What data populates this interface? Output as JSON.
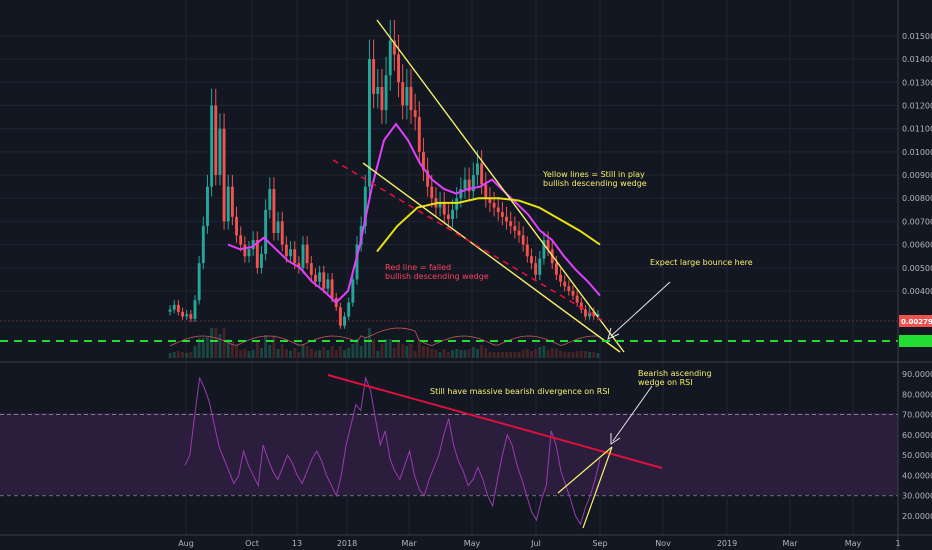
{
  "colors": {
    "background": "#131722",
    "grid": "#1f2430",
    "candle_up": "#26a69a",
    "candle_down": "#ef5350",
    "ma_short": "#e040fb",
    "ma_long": "#e8e010",
    "volume_ma": "#c05858",
    "trend_yellow": "#f5f06a",
    "trend_red": "#e0103c",
    "support_green": "#22dd33",
    "rsi_line": "#9a3ab0",
    "rsi_band": "#2b1e3d",
    "current_price_badge": "#ef5350",
    "support_badge": "#22dd33"
  },
  "price_badge": "0.002794",
  "support_badge": "0.002000",
  "annotations": {
    "yellow_lines_1": "Yellow lines = Still in play",
    "yellow_lines_2": "bullish descending wedge",
    "red_line_1": "Red line = failed",
    "red_line_2": "bullish descending wedge",
    "bounce": "Expect large bounce here",
    "divergence": "Still have massive bearish divergence on RSI",
    "rsi_wedge_1": "Bearish ascending",
    "rsi_wedge_2": "wedge on RSI"
  },
  "chart_data": [
    {
      "type": "candlestick",
      "x_tick_labels": [
        "Aug",
        "Oct",
        "13",
        "2018",
        "Mar",
        "May",
        "Jul",
        "Sep",
        "Nov",
        "2019",
        "Mar",
        "May",
        "1"
      ],
      "y_tick_labels": [
        "0.015000",
        "0.014000",
        "0.013000",
        "0.012000",
        "0.011000",
        "0.010000",
        "0.009000",
        "0.008000",
        "0.007000",
        "0.006000",
        "0.005000",
        "0.004000"
      ],
      "ylim": [
        0.0018,
        0.0156
      ],
      "close_series": [
        0.0032,
        0.0034,
        0.0031,
        0.0029,
        0.003,
        0.0028,
        0.0036,
        0.0052,
        0.0068,
        0.0085,
        0.012,
        0.009,
        0.011,
        0.007,
        0.0085,
        0.0072,
        0.0064,
        0.006,
        0.0055,
        0.0058,
        0.0062,
        0.005,
        0.0056,
        0.0075,
        0.0084,
        0.0065,
        0.007,
        0.006,
        0.0055,
        0.0058,
        0.0052,
        0.005,
        0.006,
        0.0052,
        0.0047,
        0.0044,
        0.0048,
        0.0041,
        0.0045,
        0.0037,
        0.0033,
        0.0025,
        0.0029,
        0.0035,
        0.0045,
        0.006,
        0.0068,
        0.0085,
        0.014,
        0.0125,
        0.0128,
        0.0118,
        0.0133,
        0.0148,
        0.0142,
        0.013,
        0.012,
        0.0128,
        0.0118,
        0.0115,
        0.01,
        0.0092,
        0.0085,
        0.008,
        0.0076,
        0.0078,
        0.0073,
        0.0071,
        0.0075,
        0.008,
        0.0084,
        0.0088,
        0.0083,
        0.009,
        0.0095,
        0.0086,
        0.008,
        0.0078,
        0.0076,
        0.0074,
        0.0072,
        0.007,
        0.0068,
        0.0066,
        0.0064,
        0.006,
        0.0055,
        0.0052,
        0.0047,
        0.0054,
        0.0062,
        0.0058,
        0.0052,
        0.0047,
        0.0044,
        0.0042,
        0.004,
        0.0038,
        0.0035,
        0.0032,
        0.0029,
        0.0031,
        0.0029,
        0.003
      ],
      "moving_averages": [
        {
          "name": "",
          "values": [
            0.006,
            0.0058,
            0.0059,
            0.0063,
            0.0058,
            0.0053,
            0.005,
            0.0044,
            0.004,
            0.0035,
            0.004,
            0.006,
            0.0085,
            0.0105,
            0.0112,
            0.0105,
            0.0095,
            0.0088,
            0.0084,
            0.0082,
            0.0084,
            0.0085,
            0.0088,
            0.0083,
            0.0078,
            0.0073,
            0.0066,
            0.0062,
            0.0055,
            0.0049,
            0.0044,
            0.0038
          ]
        },
        {
          "name": "",
          "values": [
            0.0057,
            0.0068,
            0.0076,
            0.0078,
            0.0078,
            0.008,
            0.008,
            0.0079,
            0.0076,
            0.0071,
            0.0066,
            0.006
          ]
        }
      ],
      "current_price": 0.002794,
      "support_level": 0.002
    },
    {
      "type": "line",
      "title": "RSI",
      "y_tick_labels": [
        "90.0000",
        "80.0000",
        "70.0000",
        "60.0000",
        "50.0000",
        "40.0000",
        "30.0000",
        "20.0000"
      ],
      "ylim": [
        14,
        92
      ],
      "overbought": 70,
      "oversold": 30,
      "values": [
        45,
        50,
        70,
        88,
        83,
        76,
        65,
        54,
        48,
        42,
        36,
        40,
        52,
        45,
        40,
        35,
        55,
        48,
        42,
        38,
        44,
        50,
        46,
        40,
        36,
        42,
        48,
        52,
        47,
        40,
        35,
        30,
        40,
        55,
        65,
        75,
        72,
        88,
        82,
        68,
        55,
        62,
        48,
        42,
        38,
        45,
        52,
        40,
        33,
        30,
        38,
        44,
        50,
        60,
        68,
        55,
        47,
        42,
        35,
        38,
        44,
        38,
        30,
        25,
        38,
        50,
        60,
        55,
        45,
        38,
        30,
        22,
        18,
        28,
        35,
        62,
        55,
        42,
        35,
        28,
        20,
        16,
        24,
        30,
        38,
        48
      ]
    }
  ]
}
